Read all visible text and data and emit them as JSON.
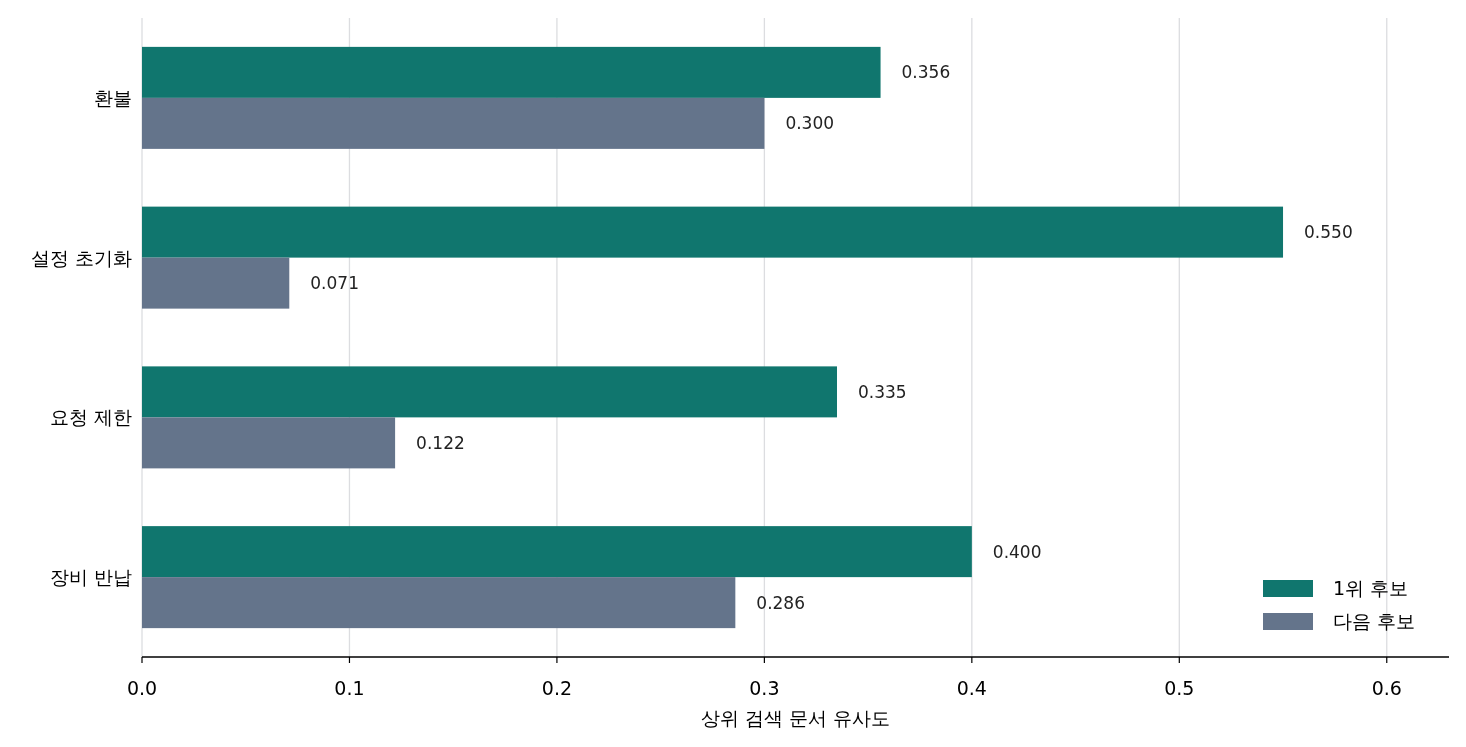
{
  "chart_data": {
    "type": "bar",
    "orientation": "horizontal",
    "categories": [
      "환불",
      "설정 초기화",
      "요청 제한",
      "장비 반납"
    ],
    "series": [
      {
        "name": "1위 후보",
        "color": "#10766e",
        "values": [
          0.356,
          0.55,
          0.335,
          0.4
        ],
        "value_labels": [
          "0.356",
          "0.550",
          "0.335",
          "0.400"
        ]
      },
      {
        "name": "다음 후보",
        "color": "#64748b",
        "values": [
          0.3,
          0.071,
          0.122,
          0.286
        ],
        "value_labels": [
          "0.300",
          "0.071",
          "0.122",
          "0.286"
        ]
      }
    ],
    "xlabel": "상위 검색 문서 유사도",
    "xlim": [
      0,
      0.63
    ],
    "xticks": [
      {
        "value": 0,
        "label": "0.0"
      },
      0.1,
      0.2,
      0.3,
      0.4,
      0.5,
      0.6
    ],
    "grid": "x",
    "legend": "bottom right"
  }
}
